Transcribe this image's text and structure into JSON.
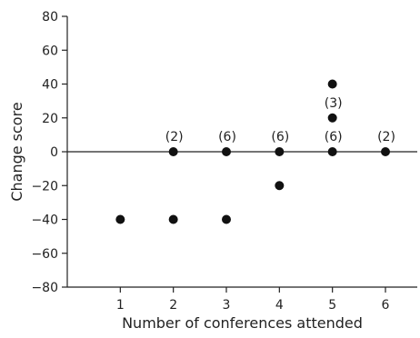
{
  "chart_data": {
    "type": "scatter",
    "xlabel": "Number of conferences attended",
    "ylabel": "Change score",
    "xlim": [
      0,
      6.6
    ],
    "ylim": [
      -80,
      80
    ],
    "x_ticks": [
      "1",
      "2",
      "3",
      "4",
      "5",
      "6"
    ],
    "y_ticks": [
      "80",
      "60",
      "40",
      "20",
      "0",
      "−20",
      "−40",
      "−60",
      "−80"
    ],
    "reference_line_y": 0,
    "points": [
      {
        "x": 1,
        "y": -40
      },
      {
        "x": 2,
        "y": 0
      },
      {
        "x": 2,
        "y": -40
      },
      {
        "x": 3,
        "y": 0
      },
      {
        "x": 3,
        "y": -40
      },
      {
        "x": 4,
        "y": 0
      },
      {
        "x": 4,
        "y": -20
      },
      {
        "x": 5,
        "y": 40
      },
      {
        "x": 5,
        "y": 20
      },
      {
        "x": 5,
        "y": 0
      },
      {
        "x": 6,
        "y": 0
      }
    ],
    "annotations": [
      {
        "x": 2,
        "y": 0,
        "text": "(2)"
      },
      {
        "x": 3,
        "y": 0,
        "text": "(6)"
      },
      {
        "x": 4,
        "y": 0,
        "text": "(6)"
      },
      {
        "x": 5,
        "y": 20,
        "text": "(3)"
      },
      {
        "x": 5,
        "y": 0,
        "text": "(6)"
      },
      {
        "x": 6,
        "y": 0,
        "text": "(2)"
      }
    ],
    "colors": {
      "marker": "#111111",
      "axis": "#222222"
    }
  }
}
